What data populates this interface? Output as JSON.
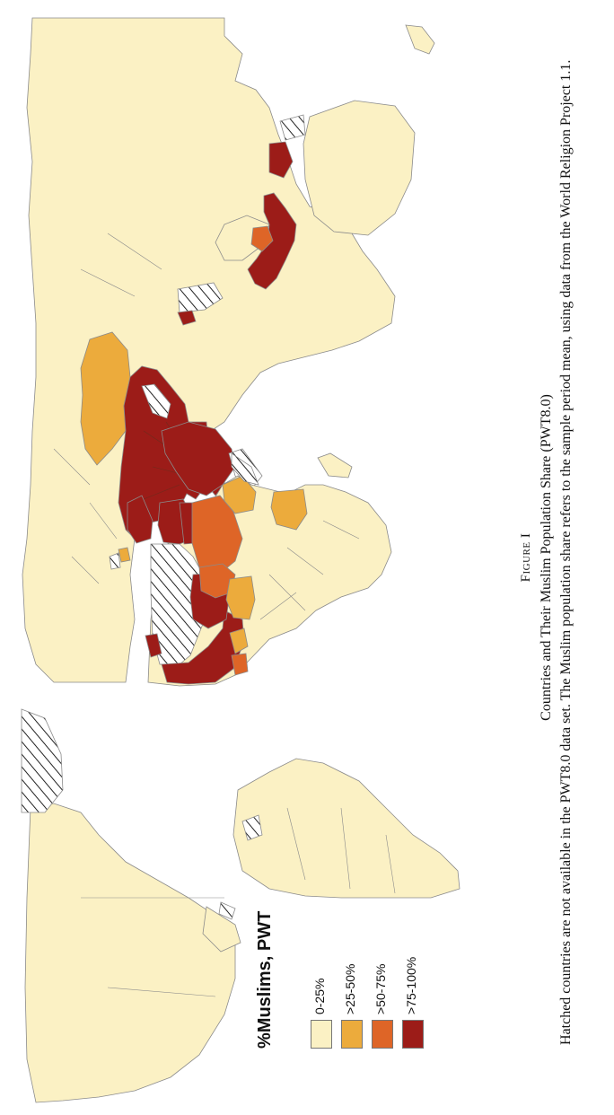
{
  "figure": {
    "label": "Figure I",
    "title": "Countries and Their Muslim Population Share (PWT8.0)",
    "note": "Hatched countries are not available in the PWT8.0 data set. The Muslim population share refers to the sample period mean, using data from the World Religion Project 1.1."
  },
  "legend": {
    "title": "%Muslims, PWT",
    "items": [
      {
        "label": "0-25%",
        "color": "#fbf1c4"
      },
      {
        "label": ">25-50%",
        "color": "#ecab3c"
      },
      {
        "label": ">50-75%",
        "color": "#de6527"
      },
      {
        "label": ">75-100%",
        "color": "#9c1c18"
      }
    ]
  },
  "map": {
    "colors": {
      "land": "#fbf1c4",
      "low_mid": "#ecab3c",
      "high_mid": "#de6527",
      "high": "#9c1c18",
      "border": "#8b8b8b",
      "hatch": "#222222",
      "background": "#ffffff"
    },
    "categories": [
      "0-25%",
      ">25-50%",
      ">50-75%",
      ">75-100%",
      "not available"
    ]
  }
}
